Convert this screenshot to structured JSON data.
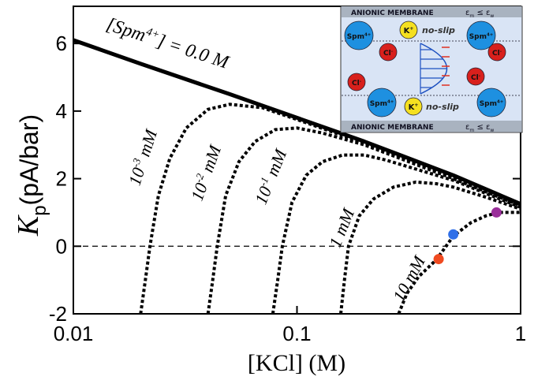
{
  "chart_data": {
    "type": "line",
    "x_scale": "log",
    "xlim": [
      0.01,
      1
    ],
    "xticks": [
      0.01,
      0.1,
      1
    ],
    "ylim": [
      -2,
      7.1
    ],
    "yticks": [
      -2,
      0,
      2,
      4,
      6
    ],
    "xlabel": "[KCl] (M)",
    "ylabel": {
      "symbol": "K",
      "subscript": "p",
      "unit": "(pA/bar)"
    },
    "reference_line": {
      "y": 0,
      "style": "dashed"
    },
    "series": [
      {
        "label": [
          {
            "text": "[Spm"
          },
          {
            "text": "4+",
            "script": "sup"
          },
          {
            "text": "] = 0.0 M"
          }
        ],
        "style": "solid",
        "color": "#000000",
        "x": [
          0.01,
          0.02,
          0.05,
          0.1,
          0.2,
          0.5,
          1
        ],
        "values": [
          6.1,
          5.4,
          4.5,
          3.8,
          3.1,
          2.1,
          1.25
        ]
      },
      {
        "label": [
          {
            "text": "10"
          },
          {
            "text": "-3",
            "script": "sup"
          },
          {
            "text": " mM"
          }
        ],
        "style": "dashed",
        "color": "#000000",
        "x": [
          0.02,
          0.021,
          0.022,
          0.024,
          0.027,
          0.032,
          0.04,
          0.05,
          0.07,
          0.1,
          0.2,
          0.5,
          1
        ],
        "values": [
          -2,
          -1,
          0,
          1.5,
          2.6,
          3.5,
          4.05,
          4.2,
          4.1,
          3.75,
          3.05,
          2.05,
          1.2
        ]
      },
      {
        "label": [
          {
            "text": "10"
          },
          {
            "text": "-2",
            "script": "sup"
          },
          {
            "text": " mM"
          }
        ],
        "style": "dashed",
        "color": "#000000",
        "x": [
          0.04,
          0.042,
          0.044,
          0.048,
          0.055,
          0.065,
          0.08,
          0.1,
          0.13,
          0.2,
          0.5,
          1
        ],
        "values": [
          -2,
          -1,
          0,
          1.5,
          2.5,
          3.1,
          3.45,
          3.5,
          3.35,
          3.0,
          2.0,
          1.2
        ]
      },
      {
        "label": [
          {
            "text": "10"
          },
          {
            "text": "-1",
            "script": "sup"
          },
          {
            "text": " mM"
          }
        ],
        "style": "dashed",
        "color": "#000000",
        "x": [
          0.078,
          0.082,
          0.086,
          0.095,
          0.11,
          0.13,
          0.16,
          0.2,
          0.25,
          0.5,
          1
        ],
        "values": [
          -2,
          -1,
          0,
          1.3,
          2.1,
          2.5,
          2.7,
          2.7,
          2.55,
          1.95,
          1.15
        ]
      },
      {
        "label": [
          {
            "text": "1 mM"
          }
        ],
        "style": "dashed",
        "color": "#000000",
        "x": [
          0.157,
          0.163,
          0.17,
          0.19,
          0.22,
          0.27,
          0.34,
          0.42,
          0.5,
          0.7,
          1
        ],
        "values": [
          -2,
          -1,
          0,
          0.9,
          1.4,
          1.75,
          1.9,
          1.85,
          1.75,
          1.45,
          1.1
        ]
      },
      {
        "label": [
          {
            "text": "10 mM"
          }
        ],
        "style": "dashed",
        "color": "#000000",
        "x": [
          0.285,
          0.31,
          0.35,
          0.42,
          0.5,
          0.6,
          0.7,
          0.8,
          1
        ],
        "values": [
          -2,
          -1.4,
          -0.9,
          -0.4,
          0.3,
          0.7,
          0.9,
          1.0,
          1.0
        ]
      }
    ],
    "highlight_points": {
      "x": [
        0.43,
        0.5,
        0.78
      ],
      "values": [
        -0.38,
        0.35,
        1.0
      ],
      "colors": [
        "#f04a20",
        "#2f6fe8",
        "#9a2f9a"
      ]
    },
    "inset": {
      "membrane_label": "ANIONIC MEMBRANE",
      "condition": [
        {
          "text": "ε"
        },
        {
          "text": "m",
          "script": "sub"
        },
        {
          "text": " ≤ ε"
        },
        {
          "text": "w",
          "script": "sub"
        }
      ],
      "cation": [
        {
          "text": "Spm"
        },
        {
          "text": "4+",
          "script": "sup"
        }
      ],
      "counterion": [
        {
          "text": "K"
        },
        {
          "text": "+",
          "script": "sup"
        }
      ],
      "coion": [
        {
          "text": "Cl"
        },
        {
          "text": "-",
          "script": "sup"
        }
      ],
      "wall_condition": "no-slip"
    }
  }
}
